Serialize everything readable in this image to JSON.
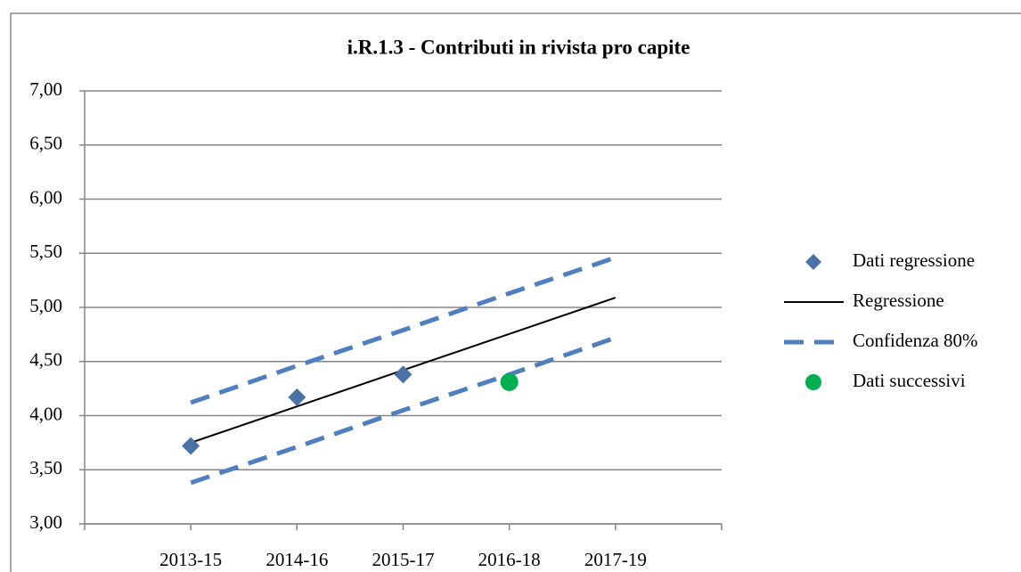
{
  "chart_data": {
    "type": "line",
    "title": "i.R.1.3 - Contributi in rivista pro capite",
    "categories": [
      "2013-15",
      "2014-16",
      "2015-17",
      "2016-18",
      "2017-19"
    ],
    "ylim": [
      3,
      7
    ],
    "yticks": [
      {
        "value": 3,
        "label": "3,00"
      },
      {
        "value": 3.5,
        "label": "3,50"
      },
      {
        "value": 4,
        "label": "4,00"
      },
      {
        "value": 4.5,
        "label": "4,50"
      },
      {
        "value": 5,
        "label": "5,00"
      },
      {
        "value": 5.5,
        "label": "5,50"
      },
      {
        "value": 6,
        "label": "6,00"
      },
      {
        "value": 6.5,
        "label": "6,50"
      },
      {
        "value": 7,
        "label": "7,00"
      }
    ],
    "grid": true,
    "legend": "right",
    "series": [
      {
        "name": "Dati regressione",
        "color": "#4a72a8",
        "marker": "diamond",
        "values": [
          3.72,
          4.17,
          4.38,
          null,
          null
        ]
      },
      {
        "name": "Regressione",
        "color": "#000000",
        "line": "solid",
        "values": [
          3.75,
          4.085,
          4.42,
          4.755,
          5.09
        ]
      },
      {
        "name": "Confidenza 80%",
        "color": "#4f7fbf",
        "line": "dashed",
        "upper": [
          4.12,
          4.46,
          4.79,
          5.13,
          5.46
        ],
        "lower": [
          3.38,
          3.71,
          4.05,
          4.38,
          4.72
        ]
      },
      {
        "name": "Dati successivi",
        "color": "#00b050",
        "marker": "circle",
        "values": [
          null,
          null,
          null,
          4.31,
          null
        ]
      }
    ]
  }
}
